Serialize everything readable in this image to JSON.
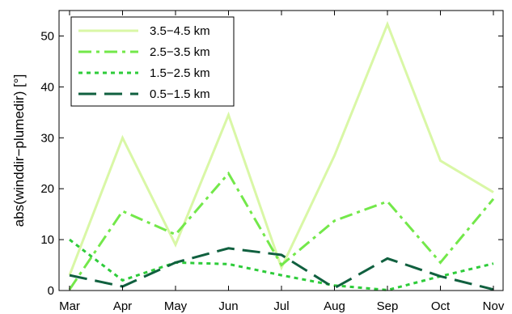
{
  "chart_data": {
    "type": "line",
    "title": "",
    "xlabel": "",
    "ylabel": "abs(winddir−plumedir) [°]",
    "categories": [
      "Mar",
      "Apr",
      "May",
      "Jun",
      "Jul",
      "Aug",
      "Sep",
      "Oct",
      "Nov"
    ],
    "ylim": [
      0,
      55
    ],
    "yticks": [
      0,
      10,
      20,
      30,
      40,
      50
    ],
    "grid": false,
    "legend_position": "top-left",
    "series": [
      {
        "name": "3.5−4.5 km",
        "style": "solid",
        "color": "#d9f7a6",
        "values": [
          3.0,
          30.0,
          9.0,
          34.5,
          4.5,
          26.5,
          52.3,
          25.5,
          19.3
        ]
      },
      {
        "name": "2.5−3.5 km",
        "style": "dashdot",
        "color": "#73e84a",
        "values": [
          0.2,
          15.6,
          11.0,
          23.0,
          5.0,
          13.7,
          17.5,
          5.5,
          18.0
        ]
      },
      {
        "name": "1.5−2.5 km",
        "style": "dotted",
        "color": "#2ecc3a",
        "values": [
          10.0,
          2.0,
          5.5,
          5.2,
          3.0,
          1.0,
          0.1,
          2.8,
          5.3
        ]
      },
      {
        "name": "0.5−1.5 km",
        "style": "dashed",
        "color": "#10603f",
        "values": [
          3.0,
          0.8,
          5.5,
          8.3,
          7.0,
          0.5,
          6.3,
          2.8,
          0.2
        ]
      }
    ]
  }
}
